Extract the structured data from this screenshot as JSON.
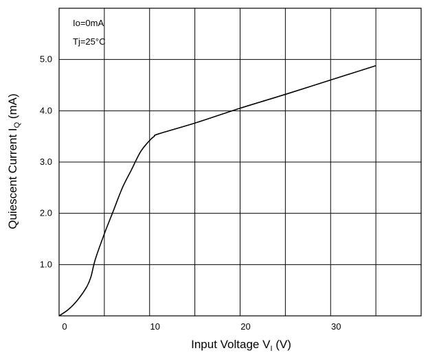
{
  "chart_data": {
    "type": "line",
    "title": "",
    "xlabel": {
      "main": "Input Voltage  V",
      "sub": "I",
      "unit": "  (V)"
    },
    "ylabel": {
      "main": "Quiescent Current  I",
      "sub": "Q",
      "unit": " (mA)"
    },
    "xlim": [
      0,
      40
    ],
    "ylim": [
      0,
      6
    ],
    "x_ticks": [
      0,
      10,
      20,
      30
    ],
    "x_tick_labels": [
      "0",
      "10",
      "20",
      "30"
    ],
    "y_ticks": [
      1,
      2,
      3,
      4,
      5
    ],
    "y_tick_labels": [
      "1.0",
      "2.0",
      "3.0",
      "4.0",
      "5.0"
    ],
    "grid": true,
    "annotations": [
      "Io=0mA",
      "Tj=25°C"
    ],
    "series": [
      {
        "x": [
          0,
          1,
          2,
          3,
          3.5,
          4,
          5,
          6,
          7,
          8,
          9,
          10,
          10.5,
          11,
          15,
          20,
          25,
          30,
          35
        ],
        "y": [
          0,
          0.12,
          0.3,
          0.55,
          0.75,
          1.1,
          1.6,
          2.05,
          2.5,
          2.85,
          3.2,
          3.42,
          3.5,
          3.55,
          3.76,
          4.05,
          4.32,
          4.6,
          4.88
        ]
      }
    ]
  }
}
